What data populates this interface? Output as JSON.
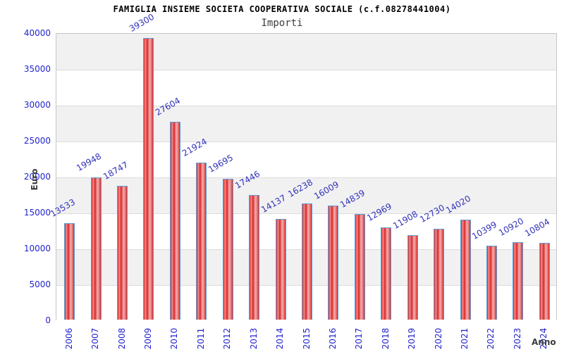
{
  "chart_data": {
    "type": "bar",
    "title": "FAMIGLIA INSIEME SOCIETA COOPERATIVA SOCIALE (c.f.08278441004)",
    "subtitle": "Importi",
    "xlabel": "Anno",
    "ylabel": "Euro",
    "categories": [
      "2006",
      "2007",
      "2008",
      "2009",
      "2010",
      "2011",
      "2012",
      "2013",
      "2014",
      "2015",
      "2016",
      "2017",
      "2018",
      "2019",
      "2020",
      "2021",
      "2022",
      "2023",
      "2024"
    ],
    "values": [
      13533,
      19948,
      18747,
      39300,
      27604,
      21924,
      19695,
      17446,
      14137,
      16238,
      16009,
      14839,
      12969,
      11908,
      12730,
      14020,
      10399,
      10920,
      10804
    ],
    "value_labels_shown": true,
    "value_label_rotation_deg": -30,
    "xtick_rotation_deg": -90,
    "ylim": [
      0,
      40000
    ],
    "yticks": [
      0,
      5000,
      10000,
      15000,
      20000,
      25000,
      30000,
      35000,
      40000
    ],
    "legend": "none",
    "grid": "horizontal-bands-alternating",
    "colors": {
      "bar_fill": "#dc2a2a",
      "bar_highlight": "#f4acac",
      "bar_border": "#5d9cd3",
      "value_label": "#3030b8",
      "tick_label": "#2323cd",
      "axis_title": "#3c3c3c",
      "band_gray": "#f1f1f2",
      "band_white": "#ffffff",
      "gridline": "#dcdcdc",
      "title": "#000000",
      "subtitle": "#3c3c3c"
    }
  }
}
